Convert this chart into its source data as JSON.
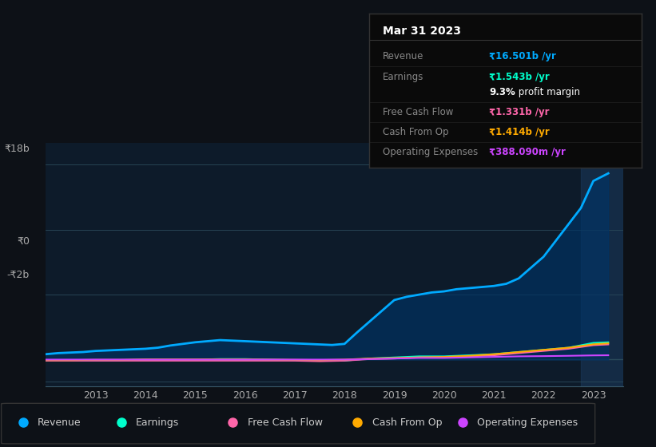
{
  "bg_color": "#0d1117",
  "plot_bg_color": "#0d1b2a",
  "y_label_18b": "₹18b",
  "y_label_0": "₹0",
  "y_label_neg2b": "-₹2b",
  "x_labels": [
    "2013",
    "2014",
    "2015",
    "2016",
    "2017",
    "2018",
    "2019",
    "2020",
    "2021",
    "2022",
    "2023"
  ],
  "ylim": [
    -2.5,
    20
  ],
  "xlim": [
    2012.0,
    2023.6
  ],
  "legend_items": [
    {
      "label": "Revenue",
      "color": "#00aaff"
    },
    {
      "label": "Earnings",
      "color": "#00ffcc"
    },
    {
      "label": "Free Cash Flow",
      "color": "#ff66aa"
    },
    {
      "label": "Cash From Op",
      "color": "#ffaa00"
    },
    {
      "label": "Operating Expenses",
      "color": "#cc44ff"
    }
  ],
  "tooltip_box": {
    "title": "Mar 31 2023",
    "rows": [
      {
        "label": "Revenue",
        "value": "₹16.501b /yr",
        "value_color": "#00aaff"
      },
      {
        "label": "Earnings",
        "value": "₹1.543b /yr",
        "value_color": "#00ffcc"
      },
      {
        "label": "",
        "value": "9.3% profit margin",
        "value_color": "#ffffff"
      },
      {
        "label": "Free Cash Flow",
        "value": "₹1.331b /yr",
        "value_color": "#ff66aa"
      },
      {
        "label": "Cash From Op",
        "value": "₹1.414b /yr",
        "value_color": "#ffaa00"
      },
      {
        "label": "Operating Expenses",
        "value": "₹388.090m /yr",
        "value_color": "#cc44ff"
      }
    ]
  },
  "revenue": {
    "color": "#00aaff",
    "x": [
      2012.0,
      2012.25,
      2012.5,
      2012.75,
      2013.0,
      2013.25,
      2013.5,
      2013.75,
      2014.0,
      2014.25,
      2014.5,
      2014.75,
      2015.0,
      2015.25,
      2015.5,
      2015.75,
      2016.0,
      2016.25,
      2016.5,
      2016.75,
      2017.0,
      2017.25,
      2017.5,
      2017.75,
      2018.0,
      2018.25,
      2018.5,
      2018.75,
      2019.0,
      2019.25,
      2019.5,
      2019.75,
      2020.0,
      2020.25,
      2020.5,
      2020.75,
      2021.0,
      2021.25,
      2021.5,
      2021.75,
      2022.0,
      2022.25,
      2022.5,
      2022.75,
      2023.0,
      2023.3
    ],
    "y": [
      0.5,
      0.6,
      0.65,
      0.7,
      0.8,
      0.85,
      0.9,
      0.95,
      1.0,
      1.1,
      1.3,
      1.45,
      1.6,
      1.7,
      1.8,
      1.75,
      1.7,
      1.65,
      1.6,
      1.55,
      1.5,
      1.45,
      1.4,
      1.35,
      1.45,
      2.5,
      3.5,
      4.5,
      5.5,
      5.8,
      6.0,
      6.2,
      6.3,
      6.5,
      6.6,
      6.7,
      6.8,
      7.0,
      7.5,
      8.5,
      9.5,
      11.0,
      12.5,
      14.0,
      16.5,
      17.2
    ]
  },
  "earnings": {
    "color": "#00ffcc",
    "x": [
      2012.0,
      2012.5,
      2013.0,
      2013.5,
      2014.0,
      2014.5,
      2015.0,
      2015.5,
      2016.0,
      2016.5,
      2017.0,
      2017.5,
      2018.0,
      2018.5,
      2019.0,
      2019.5,
      2020.0,
      2020.5,
      2021.0,
      2021.5,
      2022.0,
      2022.5,
      2023.0,
      2023.3
    ],
    "y": [
      -0.05,
      -0.05,
      -0.05,
      -0.05,
      0.0,
      0.0,
      0.0,
      0.05,
      0.05,
      0.0,
      -0.05,
      -0.1,
      -0.1,
      0.1,
      0.2,
      0.3,
      0.3,
      0.4,
      0.5,
      0.7,
      0.9,
      1.1,
      1.543,
      1.6
    ]
  },
  "free_cash_flow": {
    "color": "#ff66aa",
    "x": [
      2012.0,
      2012.5,
      2013.0,
      2013.5,
      2014.0,
      2014.5,
      2015.0,
      2015.5,
      2016.0,
      2016.5,
      2017.0,
      2017.5,
      2018.0,
      2018.5,
      2019.0,
      2019.5,
      2020.0,
      2020.5,
      2021.0,
      2021.5,
      2022.0,
      2022.5,
      2023.0,
      2023.3
    ],
    "y": [
      -0.1,
      -0.1,
      -0.1,
      -0.1,
      -0.1,
      -0.1,
      -0.1,
      -0.1,
      -0.1,
      -0.1,
      -0.1,
      -0.15,
      -0.1,
      0.05,
      0.1,
      0.2,
      0.2,
      0.3,
      0.4,
      0.6,
      0.8,
      1.0,
      1.331,
      1.4
    ]
  },
  "cash_from_op": {
    "color": "#ffaa00",
    "x": [
      2012.0,
      2012.5,
      2013.0,
      2013.5,
      2014.0,
      2014.5,
      2015.0,
      2015.5,
      2016.0,
      2016.5,
      2017.0,
      2017.5,
      2018.0,
      2018.5,
      2019.0,
      2019.5,
      2020.0,
      2020.5,
      2021.0,
      2021.5,
      2022.0,
      2022.5,
      2023.0,
      2023.3
    ],
    "y": [
      -0.05,
      -0.05,
      -0.02,
      -0.02,
      0.02,
      0.02,
      0.02,
      0.02,
      0.02,
      0.0,
      -0.02,
      -0.05,
      0.0,
      0.1,
      0.15,
      0.2,
      0.25,
      0.35,
      0.5,
      0.7,
      0.9,
      1.1,
      1.414,
      1.5
    ]
  },
  "operating_expenses": {
    "color": "#cc44ff",
    "x": [
      2012.0,
      2012.5,
      2013.0,
      2013.5,
      2014.0,
      2014.5,
      2015.0,
      2015.5,
      2016.0,
      2016.5,
      2017.0,
      2017.5,
      2018.0,
      2018.5,
      2019.0,
      2019.5,
      2020.0,
      2020.5,
      2021.0,
      2021.5,
      2022.0,
      2022.5,
      2023.0,
      2023.3
    ],
    "y": [
      0.0,
      0.0,
      0.0,
      0.0,
      0.0,
      0.0,
      0.0,
      0.0,
      0.0,
      0.0,
      0.0,
      0.0,
      0.0,
      0.05,
      0.1,
      0.15,
      0.15,
      0.2,
      0.25,
      0.3,
      0.32,
      0.35,
      0.388,
      0.4
    ]
  }
}
